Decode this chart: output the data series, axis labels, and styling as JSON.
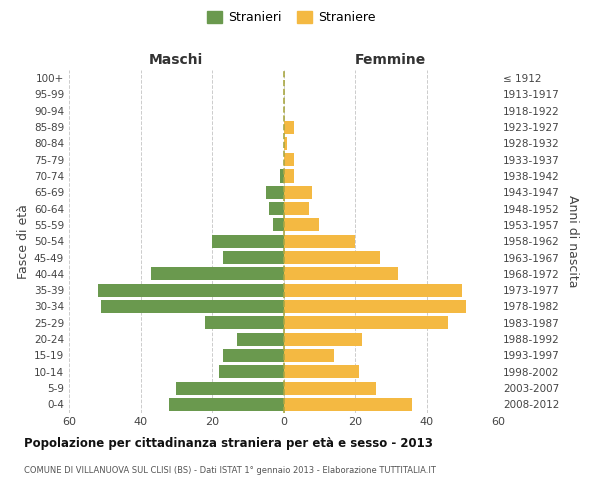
{
  "age_groups": [
    "0-4",
    "5-9",
    "10-14",
    "15-19",
    "20-24",
    "25-29",
    "30-34",
    "35-39",
    "40-44",
    "45-49",
    "50-54",
    "55-59",
    "60-64",
    "65-69",
    "70-74",
    "75-79",
    "80-84",
    "85-89",
    "90-94",
    "95-99",
    "100+"
  ],
  "birth_years": [
    "2008-2012",
    "2003-2007",
    "1998-2002",
    "1993-1997",
    "1988-1992",
    "1983-1987",
    "1978-1982",
    "1973-1977",
    "1968-1972",
    "1963-1967",
    "1958-1962",
    "1953-1957",
    "1948-1952",
    "1943-1947",
    "1938-1942",
    "1933-1937",
    "1928-1932",
    "1923-1927",
    "1918-1922",
    "1913-1917",
    "≤ 1912"
  ],
  "maschi": [
    32,
    30,
    18,
    17,
    13,
    22,
    51,
    52,
    37,
    17,
    20,
    3,
    4,
    5,
    1,
    0,
    0,
    0,
    0,
    0,
    0
  ],
  "femmine": [
    36,
    26,
    21,
    14,
    22,
    46,
    51,
    50,
    32,
    27,
    20,
    10,
    7,
    8,
    3,
    3,
    1,
    3,
    0,
    0,
    0
  ],
  "maschi_color": "#6a994e",
  "femmine_color": "#f4b942",
  "background_color": "#ffffff",
  "grid_color": "#cccccc",
  "title": "Popolazione per cittadinanza straniera per età e sesso - 2013",
  "subtitle": "COMUNE DI VILLANUOVA SUL CLISI (BS) - Dati ISTAT 1° gennaio 2013 - Elaborazione TUTTITALIA.IT",
  "xlabel_left": "Maschi",
  "xlabel_right": "Femmine",
  "ylabel_left": "Fasce di età",
  "ylabel_right": "Anni di nascita",
  "legend_maschi": "Stranieri",
  "legend_femmine": "Straniere",
  "xlim": 60,
  "bar_height": 0.8
}
